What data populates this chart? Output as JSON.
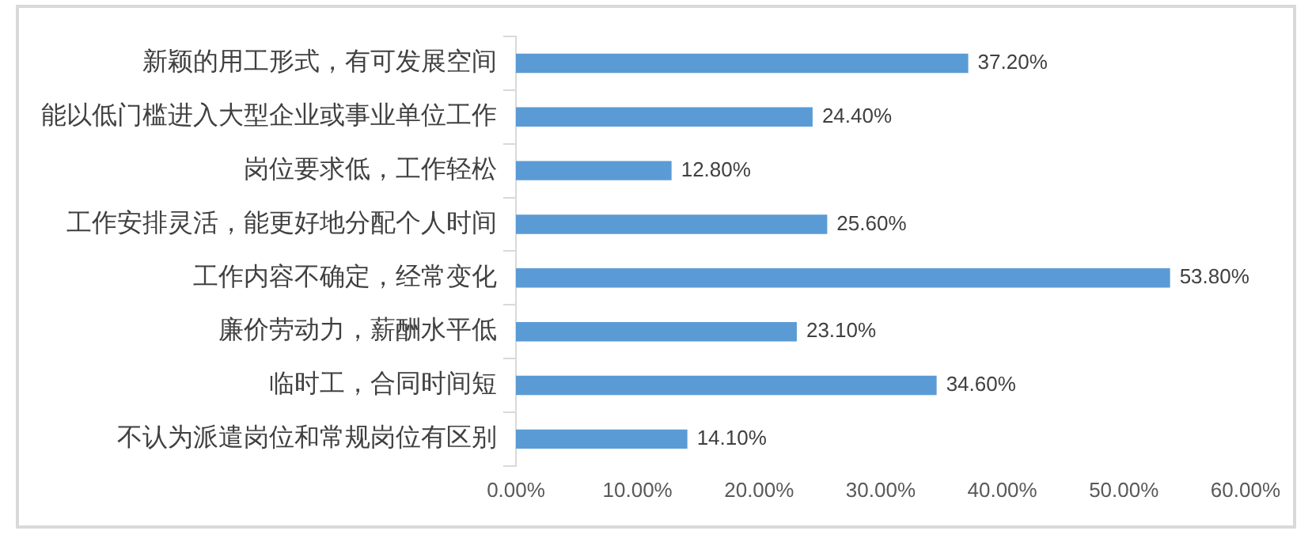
{
  "chart_data": {
    "type": "bar",
    "orientation": "horizontal",
    "categories": [
      "新颖的用工形式，有可发展空间",
      "能以低门槛进入大型企业或事业单位工作",
      "岗位要求低，工作轻松",
      "工作安排灵活，能更好地分配个人时间",
      "工作内容不确定，经常变化",
      "廉价劳动力，薪酬水平低",
      "临时工，合同时间短",
      "不认为派遣岗位和常规岗位有区别"
    ],
    "values": [
      37.2,
      24.4,
      12.8,
      25.6,
      53.8,
      23.1,
      34.6,
      14.1
    ],
    "value_labels": [
      "37.20%",
      "24.40%",
      "12.80%",
      "25.60%",
      "53.80%",
      "23.10%",
      "34.60%",
      "14.10%"
    ],
    "color": "#5b9bd5",
    "xlim": [
      0,
      60
    ],
    "xticks": [
      {
        "value": 0,
        "label": "0.00%"
      },
      {
        "value": 10,
        "label": "10.00%"
      },
      {
        "value": 20,
        "label": "20.00%"
      },
      {
        "value": 30,
        "label": "30.00%"
      },
      {
        "value": 40,
        "label": "40.00%"
      },
      {
        "value": 50,
        "label": "50.00%"
      },
      {
        "value": 60,
        "label": "60.00%"
      }
    ],
    "grid": false,
    "legend": false
  }
}
